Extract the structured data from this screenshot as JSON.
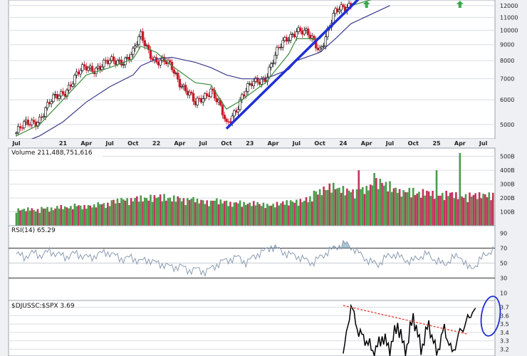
{
  "chart_data": [
    {
      "id": "price",
      "type": "candlestick",
      "scale": "log",
      "ylim": [
        4500,
        12500
      ],
      "yticks": [
        "5000",
        "6000",
        "7000",
        "8000",
        "9000",
        "10000",
        "11000",
        "12000"
      ],
      "x_labels": [
        "Jul",
        "21",
        "Apr",
        "Jul",
        "Oct",
        "22",
        "Apr",
        "Jul",
        "Oct",
        "23",
        "Apr",
        "Jul",
        "Oct",
        "24",
        "Apr",
        "Jul",
        "Oct",
        "25",
        "Apr",
        "Jul"
      ],
      "close_path_dates": [
        "2020-07",
        "2020-10",
        "2021-01",
        "2021-04",
        "2021-07",
        "2021-10",
        "2021-11",
        "2022-01",
        "2022-03",
        "2022-06",
        "2022-08",
        "2022-10",
        "2022-12",
        "2023-03",
        "2023-06",
        "2023-07",
        "2023-10",
        "2023-12",
        "2024-02"
      ],
      "close_path_values": [
        4700,
        5300,
        6400,
        7600,
        7800,
        8400,
        9500,
        8000,
        7600,
        5700,
        6600,
        4900,
        6200,
        7200,
        9600,
        10200,
        8800,
        11200,
        12400
      ],
      "ma_short_values": [
        4600,
        5000,
        6000,
        7200,
        7600,
        8100,
        8900,
        8500,
        7700,
        6800,
        6700,
        5600,
        6000,
        6800,
        8400,
        9400,
        9400,
        10700,
        12000
      ],
      "ma_long_values": [
        4300,
        4600,
        5100,
        5900,
        6600,
        7200,
        7700,
        8100,
        8200,
        7900,
        7600,
        7200,
        7000,
        7000,
        7500,
        8000,
        8500,
        9400,
        10500
      ],
      "trendline": {
        "from": [
          "2022-10",
          4850
        ],
        "to": [
          "2024-03",
          12600
        ]
      },
      "up_arrow_dates": [
        "2024-04",
        "2025-04"
      ]
    },
    {
      "id": "volume",
      "type": "bar",
      "label": "Volume 211,488,751,616",
      "yticks": [
        "100B",
        "200B",
        "300B",
        "400B",
        "500B"
      ],
      "ylim": [
        0,
        560
      ],
      "values_b_by_month": [
        110,
        115,
        105,
        120,
        115,
        130,
        125,
        140,
        130,
        135,
        150,
        145,
        170,
        180,
        175,
        190,
        185,
        195,
        200,
        185,
        190,
        175,
        185,
        170,
        160,
        175,
        165,
        150,
        160,
        150,
        155,
        145,
        140,
        150,
        160,
        165,
        170,
        185,
        230,
        250,
        270,
        250,
        240,
        230,
        250,
        270,
        300,
        280,
        250,
        230,
        240,
        220,
        230,
        220,
        210,
        220,
        210,
        200,
        210
      ],
      "spikes": [
        {
          "date": "2024-03",
          "value": 400
        },
        {
          "date": "2024-05",
          "value": 380
        },
        {
          "date": "2025-01",
          "value": 400
        },
        {
          "date": "2025-04",
          "value": 525
        }
      ]
    },
    {
      "id": "rsi",
      "type": "line",
      "label": "RSI(14) 65.29",
      "yticks": [
        "10",
        "30",
        "50",
        "70",
        "90"
      ],
      "ylim": [
        0,
        100
      ],
      "bands": [
        30,
        50,
        70
      ],
      "values": [
        62,
        58,
        64,
        60,
        66,
        62,
        58,
        63,
        60,
        57,
        62,
        65,
        60,
        55,
        58,
        52,
        55,
        50,
        48,
        44,
        46,
        40,
        42,
        38,
        45,
        52,
        55,
        58,
        50,
        60,
        65,
        72,
        68,
        62,
        60,
        55,
        50,
        58,
        66,
        72,
        76,
        70,
        60,
        52,
        48,
        58,
        62,
        56,
        52,
        58,
        62,
        54,
        48,
        56,
        60,
        42,
        48,
        62,
        67
      ]
    },
    {
      "id": "ratio",
      "type": "line",
      "label": "$DJUSSC:$SPX 3.69",
      "yticks": [
        "3.2",
        "3.3",
        "3.4",
        "3.5",
        "3.6",
        "3.7"
      ],
      "ylim": [
        3.12,
        3.78
      ],
      "series_dates": [
        "2024-01",
        "2024-02",
        "2024-03",
        "2024-04",
        "2024-05",
        "2024-06",
        "2024-07",
        "2024-08",
        "2024-09",
        "2024-10",
        "2024-11",
        "2024-12",
        "2025-01",
        "2025-02",
        "2025-03",
        "2025-04",
        "2025-05",
        "2025-06"
      ],
      "values": [
        3.15,
        3.72,
        3.4,
        3.3,
        3.15,
        3.35,
        3.2,
        3.5,
        3.15,
        3.6,
        3.2,
        3.5,
        3.15,
        3.45,
        3.15,
        3.4,
        3.55,
        3.69
      ],
      "resistance": {
        "from": [
          "2024-01",
          3.72
        ],
        "to": [
          "2025-05",
          3.38
        ]
      }
    }
  ]
}
